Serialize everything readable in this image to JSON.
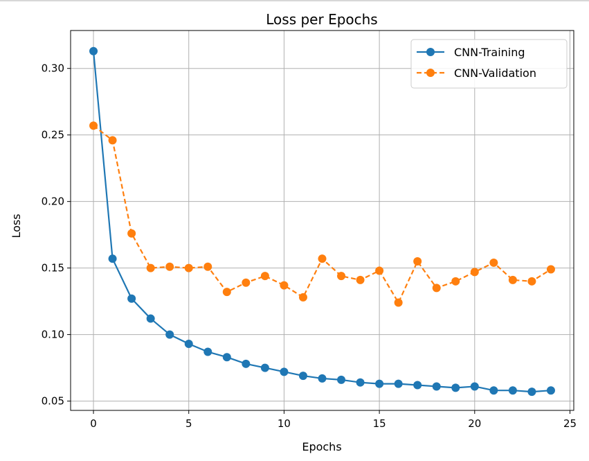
{
  "chart_data": {
    "type": "line",
    "title": "Loss per Epochs",
    "xlabel": "Epochs",
    "ylabel": "Loss",
    "xlim": [
      -1.2,
      25.2
    ],
    "ylim": [
      0.043,
      0.3285
    ],
    "x_ticks": [
      0,
      5,
      10,
      15,
      20,
      25
    ],
    "x_tick_labels": [
      "0",
      "5",
      "10",
      "15",
      "20",
      "25"
    ],
    "y_ticks": [
      0.05,
      0.1,
      0.15,
      0.2,
      0.25,
      0.3
    ],
    "y_tick_labels": [
      "0.05",
      "0.10",
      "0.15",
      "0.20",
      "0.25",
      "0.30"
    ],
    "grid": true,
    "legend_position": "top-right",
    "x": [
      0,
      1,
      2,
      3,
      4,
      5,
      6,
      7,
      8,
      9,
      10,
      11,
      12,
      13,
      14,
      15,
      16,
      17,
      18,
      19,
      20,
      21,
      22,
      23,
      24
    ],
    "series": [
      {
        "name": "CNN-Training",
        "color": "#1f77b4",
        "line_style": "solid",
        "values": [
          0.313,
          0.157,
          0.127,
          0.112,
          0.1,
          0.093,
          0.087,
          0.083,
          0.078,
          0.075,
          0.072,
          0.069,
          0.067,
          0.066,
          0.064,
          0.063,
          0.063,
          0.062,
          0.061,
          0.06,
          0.061,
          0.058,
          0.058,
          0.057,
          0.058
        ]
      },
      {
        "name": "CNN-Validation",
        "color": "#ff7f0e",
        "line_style": "dashed",
        "values": [
          0.257,
          0.246,
          0.176,
          0.15,
          0.151,
          0.15,
          0.151,
          0.132,
          0.139,
          0.144,
          0.137,
          0.128,
          0.157,
          0.144,
          0.141,
          0.148,
          0.124,
          0.155,
          0.135,
          0.14,
          0.147,
          0.154,
          0.141,
          0.14,
          0.149
        ]
      }
    ]
  }
}
